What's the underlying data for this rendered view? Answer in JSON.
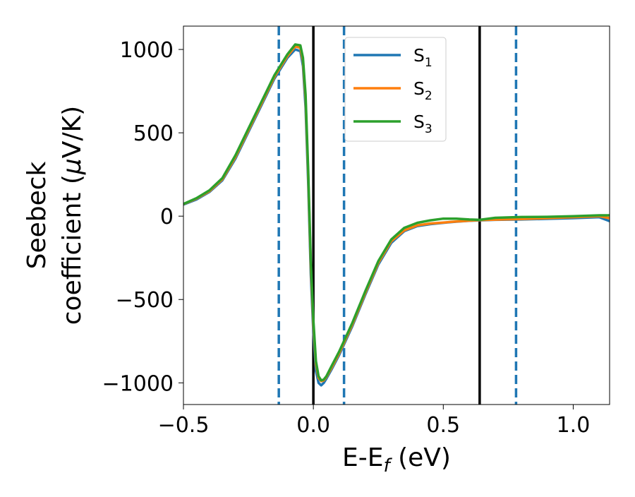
{
  "chart_data": {
    "type": "line",
    "xlabel": "E-E",
    "xlabel_sub": "f",
    "xlabel_unit": " (eV)",
    "ylabel_line1": "Seebeck",
    "ylabel_line2_pre": "coefficient  (",
    "ylabel_mu": "μ",
    "ylabel_line2_post": "V/K)",
    "xlim": [
      -0.5,
      1.14
    ],
    "ylim": [
      -1130,
      1140
    ],
    "xticks": [
      -0.5,
      0.0,
      0.5,
      1.0
    ],
    "xtick_labels": [
      "−0.5",
      "0.0",
      "0.5",
      "1.0"
    ],
    "yticks": [
      -1000,
      -500,
      0,
      500,
      1000
    ],
    "ytick_labels": [
      "−1000",
      "−500",
      "0",
      "500",
      "1000"
    ],
    "grid": false,
    "legend_position": "upper-center",
    "vlines": [
      {
        "x": -0.133,
        "style": "dashed",
        "color": "#1f77b4"
      },
      {
        "x": 0.0,
        "style": "solid",
        "color": "#000000"
      },
      {
        "x": 0.118,
        "style": "dashed",
        "color": "#1f77b4"
      },
      {
        "x": 0.64,
        "style": "solid",
        "color": "#000000"
      },
      {
        "x": 0.78,
        "style": "dashed",
        "color": "#1f77b4"
      }
    ],
    "series": [
      {
        "name": "S",
        "subscript": "1",
        "color": "#1f77b4",
        "x": [
          -0.5,
          -0.45,
          -0.4,
          -0.35,
          -0.3,
          -0.25,
          -0.2,
          -0.15,
          -0.1,
          -0.07,
          -0.05,
          -0.04,
          -0.03,
          -0.02,
          -0.01,
          0.0,
          0.01,
          0.02,
          0.03,
          0.04,
          0.05,
          0.07,
          0.1,
          0.15,
          0.2,
          0.25,
          0.3,
          0.35,
          0.4,
          0.45,
          0.5,
          0.55,
          0.6,
          0.64,
          0.7,
          0.8,
          0.9,
          1.0,
          1.1,
          1.14
        ],
        "y": [
          70,
          100,
          145,
          215,
          345,
          505,
          665,
          825,
          950,
          1000,
          990,
          900,
          650,
          200,
          -350,
          -700,
          -930,
          -1000,
          -1015,
          -1000,
          -975,
          -920,
          -830,
          -660,
          -470,
          -290,
          -160,
          -90,
          -60,
          -48,
          -40,
          -33,
          -28,
          -25,
          -22,
          -20,
          -16,
          -12,
          -6,
          -30
        ]
      },
      {
        "name": "S",
        "subscript": "2",
        "color": "#ff7f0e",
        "x": [
          -0.5,
          -0.45,
          -0.4,
          -0.35,
          -0.3,
          -0.25,
          -0.2,
          -0.15,
          -0.1,
          -0.07,
          -0.05,
          -0.04,
          -0.03,
          -0.02,
          -0.01,
          0.0,
          0.01,
          0.02,
          0.03,
          0.04,
          0.05,
          0.07,
          0.1,
          0.15,
          0.2,
          0.25,
          0.3,
          0.35,
          0.4,
          0.45,
          0.5,
          0.55,
          0.6,
          0.64,
          0.7,
          0.8,
          0.9,
          1.0,
          1.1,
          1.14
        ],
        "y": [
          72,
          105,
          150,
          222,
          355,
          515,
          675,
          835,
          960,
          1018,
          1010,
          930,
          700,
          250,
          -300,
          -650,
          -890,
          -970,
          -990,
          -985,
          -965,
          -910,
          -820,
          -650,
          -460,
          -280,
          -150,
          -85,
          -55,
          -44,
          -38,
          -32,
          -27,
          -24,
          -21,
          -17,
          -12,
          -6,
          0,
          -12
        ]
      },
      {
        "name": "S",
        "subscript": "3",
        "color": "#2ca02c",
        "x": [
          -0.5,
          -0.45,
          -0.4,
          -0.35,
          -0.3,
          -0.25,
          -0.2,
          -0.15,
          -0.1,
          -0.07,
          -0.05,
          -0.04,
          -0.03,
          -0.02,
          -0.01,
          0.0,
          0.01,
          0.02,
          0.03,
          0.04,
          0.05,
          0.07,
          0.1,
          0.15,
          0.2,
          0.25,
          0.3,
          0.35,
          0.4,
          0.45,
          0.5,
          0.55,
          0.6,
          0.64,
          0.7,
          0.8,
          0.9,
          1.0,
          1.1,
          1.14
        ],
        "y": [
          73,
          108,
          155,
          228,
          365,
          525,
          685,
          845,
          970,
          1030,
          1025,
          950,
          730,
          280,
          -270,
          -620,
          -870,
          -960,
          -985,
          -980,
          -960,
          -900,
          -810,
          -640,
          -450,
          -270,
          -140,
          -70,
          -40,
          -25,
          -15,
          -15,
          -20,
          -22,
          -10,
          -5,
          -4,
          0,
          5,
          5
        ]
      }
    ]
  }
}
